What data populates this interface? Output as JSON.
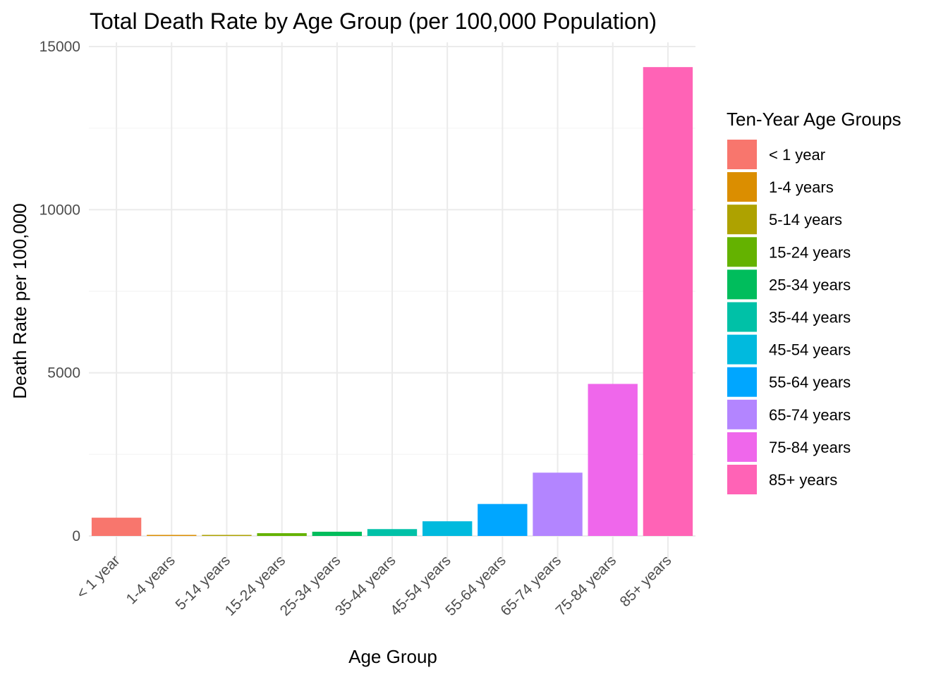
{
  "chart_data": {
    "type": "bar",
    "title": "Total Death Rate by Age Group (per 100,000 Population)",
    "xlabel": "Age Group",
    "ylabel": "Death Rate per 100,000",
    "categories": [
      "< 1 year",
      "1-4 years",
      "5-14 years",
      "15-24 years",
      "25-34 years",
      "35-44 years",
      "45-54 years",
      "55-64 years",
      "65-74 years",
      "75-84 years",
      "85+ years"
    ],
    "values": [
      560,
      25,
      15,
      85,
      130,
      210,
      450,
      980,
      1940,
      4660,
      14370
    ],
    "colors": [
      "#F8766D",
      "#DB8E00",
      "#AEA200",
      "#64B200",
      "#00BD5C",
      "#00C1A7",
      "#00BADE",
      "#00A6FF",
      "#B385FF",
      "#EF67EB",
      "#FF63B6"
    ],
    "ylim": [
      -600,
      15000
    ],
    "yticks": [
      "0",
      "5000",
      "10000",
      "15000"
    ],
    "grid": true,
    "legend": {
      "title": "Ten-Year Age Groups",
      "position": "right",
      "entries": [
        "< 1 year",
        "1-4 years",
        "5-14 years",
        "15-24 years",
        "25-34 years",
        "35-44 years",
        "45-54 years",
        "55-64 years",
        "65-74 years",
        "75-84 years",
        "85+ years"
      ]
    }
  }
}
